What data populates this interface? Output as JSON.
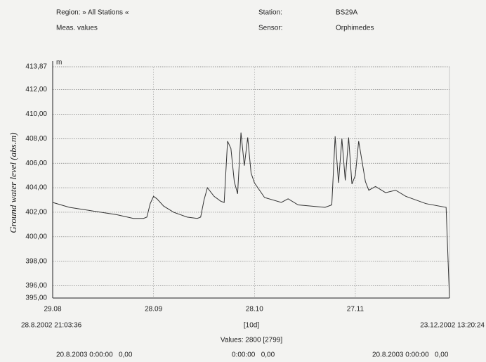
{
  "chart_data": {
    "type": "line",
    "ylabel": "Ground water level (abs.m)",
    "y_unit": "m",
    "annotations": [
      "Region: » All Stations «",
      "Meas. values",
      "Station:",
      "BS29A",
      "Sensor:",
      "Orphimedes",
      "28.8.2002 21:03:36",
      "[10d]",
      "23.12.2002 13:20:24",
      "Values: 2800 [2799]",
      "20.8.2003 0:00:00   0,00",
      "0:00:00   0,00",
      "20.8.2003 0:00:00   0,00"
    ],
    "color": "#333333",
    "grid": true,
    "xlim": [
      "29.08",
      "25.12"
    ],
    "xticks": [
      "29.08",
      "28.09",
      "28.10",
      "27.11"
    ],
    "ylim": [
      395,
      413.87
    ],
    "yticks": [
      {
        "value": 395,
        "label": "395,00"
      },
      {
        "value": 396,
        "label": "396,00"
      },
      {
        "value": 398,
        "label": "398,00"
      },
      {
        "value": 400,
        "label": "400,00"
      },
      {
        "value": 402,
        "label": "402,00"
      },
      {
        "value": 404,
        "label": "404,00"
      },
      {
        "value": 406,
        "label": "406,00"
      },
      {
        "value": 408,
        "label": "408,00"
      },
      {
        "value": 410,
        "label": "410,00"
      },
      {
        "value": 412,
        "label": "412,00"
      },
      {
        "value": 413.87,
        "label": "413,87"
      }
    ],
    "x": [
      "29.08",
      "03.09",
      "10.09",
      "17.09",
      "22.09",
      "25.09",
      "26.09",
      "27.09",
      "28.09",
      "29.09",
      "01.10",
      "04.10",
      "08.10",
      "11.10",
      "12.10",
      "13.10",
      "14.10",
      "16.10",
      "18.10",
      "19.10",
      "20.10",
      "21.10",
      "22.10",
      "23.10",
      "24.10",
      "25.10",
      "26.10",
      "27.10",
      "28.10",
      "31.10",
      "05.11",
      "07.11",
      "10.11",
      "14.11",
      "18.11",
      "20.11",
      "21.11",
      "22.11",
      "23.11",
      "24.11",
      "25.11",
      "26.11",
      "27.11",
      "28.11",
      "30.11",
      "01.12",
      "03.12",
      "06.12",
      "09.12",
      "12.12",
      "18.12",
      "24.12",
      "25.12"
    ],
    "values": [
      402.8,
      402.4,
      402.1,
      401.8,
      401.5,
      401.5,
      401.6,
      402.7,
      403.3,
      403.1,
      402.5,
      402.0,
      401.6,
      401.5,
      401.6,
      403.0,
      404.0,
      403.3,
      402.9,
      402.8,
      407.8,
      407.2,
      404.5,
      403.5,
      408.5,
      405.8,
      408.1,
      405.2,
      404.4,
      403.2,
      402.8,
      403.1,
      402.6,
      402.5,
      402.4,
      402.6,
      408.2,
      404.4,
      408.0,
      404.6,
      408.1,
      404.3,
      405.0,
      407.8,
      404.5,
      403.8,
      404.1,
      403.6,
      403.8,
      403.3,
      402.7,
      402.4,
      395.0
    ]
  }
}
